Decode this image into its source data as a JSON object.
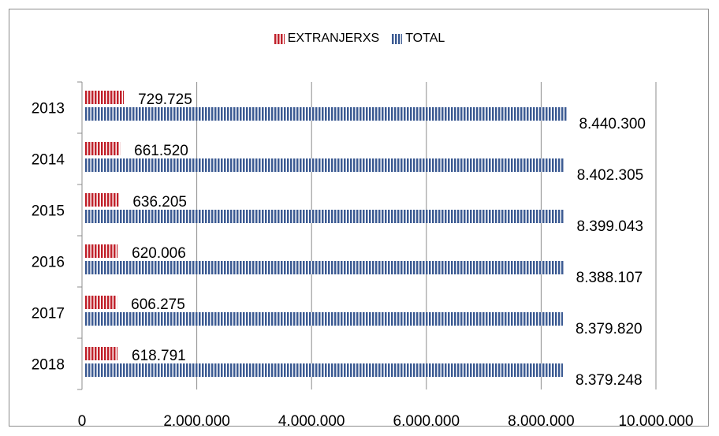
{
  "chart_data": {
    "type": "bar",
    "orientation": "horizontal",
    "categories": [
      "2013",
      "2014",
      "2015",
      "2016",
      "2017",
      "2018"
    ],
    "series": [
      {
        "name": "EXTRANJERXS",
        "values": [
          729725,
          661520,
          636205,
          620006,
          606275,
          618791
        ],
        "labels": [
          "729.725",
          "661.520",
          "636.205",
          "620.006",
          "606.275",
          "618.791"
        ],
        "color": "#c0202a"
      },
      {
        "name": "TOTAL",
        "values": [
          8440300,
          8402305,
          8399043,
          8388107,
          8379820,
          8379248
        ],
        "labels": [
          "8.440.300",
          "8.402.305",
          "8.399.043",
          "8.388.107",
          "8.379.820",
          "8.379.248"
        ],
        "color": "#3b5a92"
      }
    ],
    "xlim": [
      0,
      10000000
    ],
    "xticks": [
      0,
      2000000,
      4000000,
      6000000,
      8000000,
      10000000
    ],
    "xtick_labels": [
      "0",
      "2.000.000",
      "4.000.000",
      "6.000.000",
      "8.000.000",
      "10.000.000"
    ],
    "grid": "vertical",
    "legend_position": "top-center"
  }
}
